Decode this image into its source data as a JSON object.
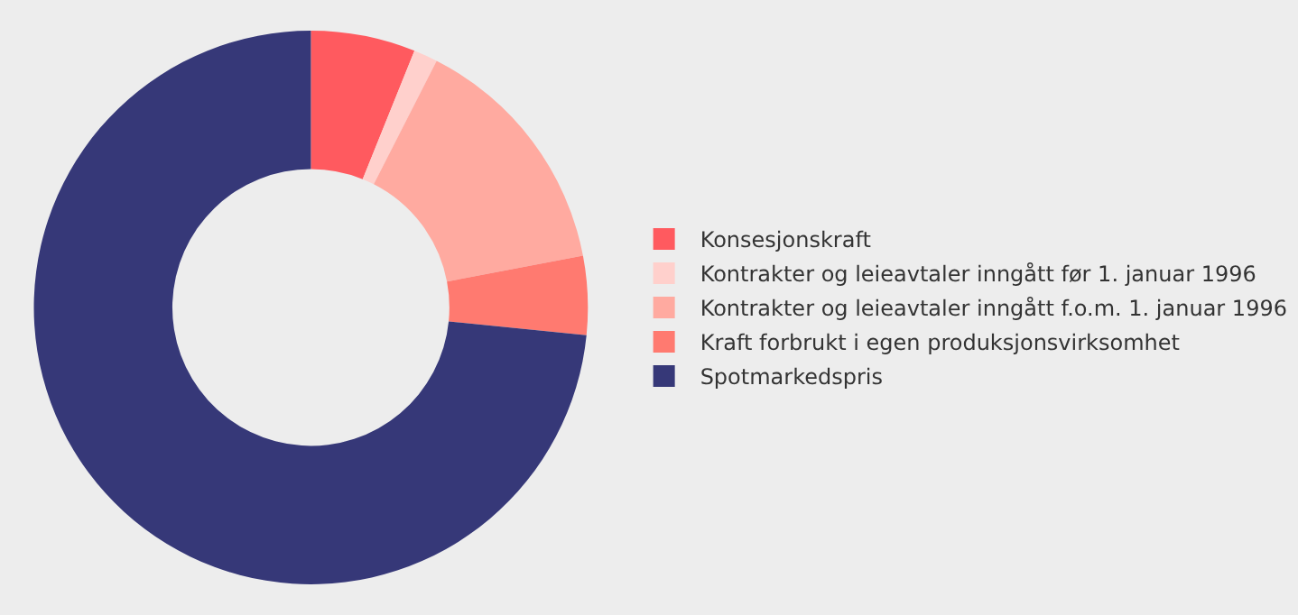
{
  "chart_data": {
    "type": "donut",
    "categories": [
      "Konsesjonskraft",
      "Kontrakter og leieavtaler inngått før 1. januar 1996",
      "Kontrakter og leieavtaler inngått f.o.m. 1. januar 1996",
      "Kraft forbrukt i egen produksjonsvirksomhet",
      "Spotmarkedspris"
    ],
    "values": [
      6.1,
      1.4,
      14.5,
      4.6,
      73.4
    ],
    "colors": [
      "#ff5a5f",
      "#ffd0cc",
      "#ffaaa0",
      "#ff7a70",
      "#363878"
    ],
    "legend": "right"
  }
}
